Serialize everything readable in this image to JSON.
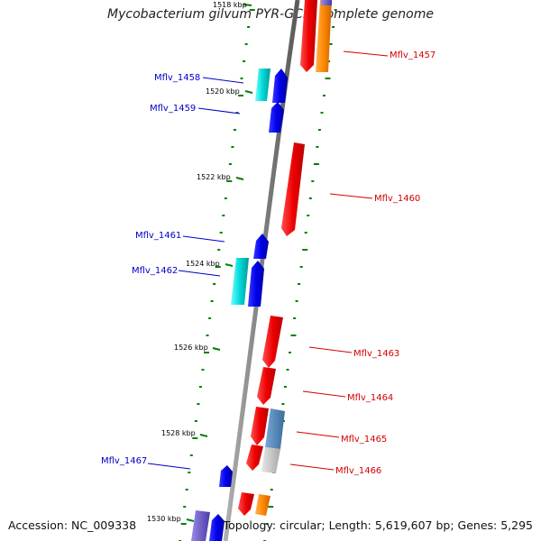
{
  "title": "Mycobacterium gilvum PYR-GCK, complete genome",
  "footer": {
    "accession": "Accession: NC_009338",
    "summary": "Topology: circular; Length: 5,619,607 bp; Genes: 5,295"
  },
  "ticks": [
    "1518 kbp",
    "1520 kbp",
    "1522 kbp",
    "1524 kbp",
    "1526 kbp",
    "1528 kbp",
    "1530 kbp"
  ],
  "gene_labels": [
    {
      "id": "Mflv_1457",
      "side": "right"
    },
    {
      "id": "Mflv_1458",
      "side": "left"
    },
    {
      "id": "Mflv_1459",
      "side": "left"
    },
    {
      "id": "Mflv_1460",
      "side": "right"
    },
    {
      "id": "Mflv_1461",
      "side": "left"
    },
    {
      "id": "Mflv_1462",
      "side": "left"
    },
    {
      "id": "Mflv_1463",
      "side": "right"
    },
    {
      "id": "Mflv_1464",
      "side": "right"
    },
    {
      "id": "Mflv_1465",
      "side": "right"
    },
    {
      "id": "Mflv_1466",
      "side": "right"
    },
    {
      "id": "Mflv_1467",
      "side": "left"
    }
  ],
  "colors": {
    "backbone": "#8a8a8a",
    "forward_cds": "#0000ee",
    "reverse_cds": "#ee0000",
    "rna": "#00cccc",
    "orange": "#ff8800",
    "steelblue": "#4682b4",
    "grey": "#c8c8c8",
    "violet": "#6a5acd",
    "gc_marks": "#008000"
  }
}
